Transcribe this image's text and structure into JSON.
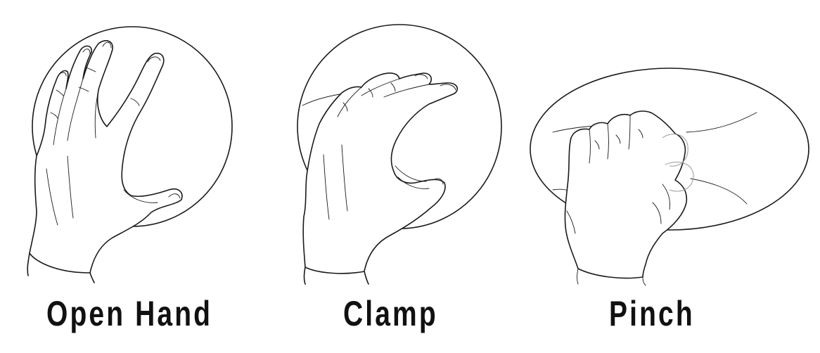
{
  "grips": [
    {
      "label": "Open Hand"
    },
    {
      "label": "Clamp"
    },
    {
      "label": "Pinch"
    }
  ]
}
